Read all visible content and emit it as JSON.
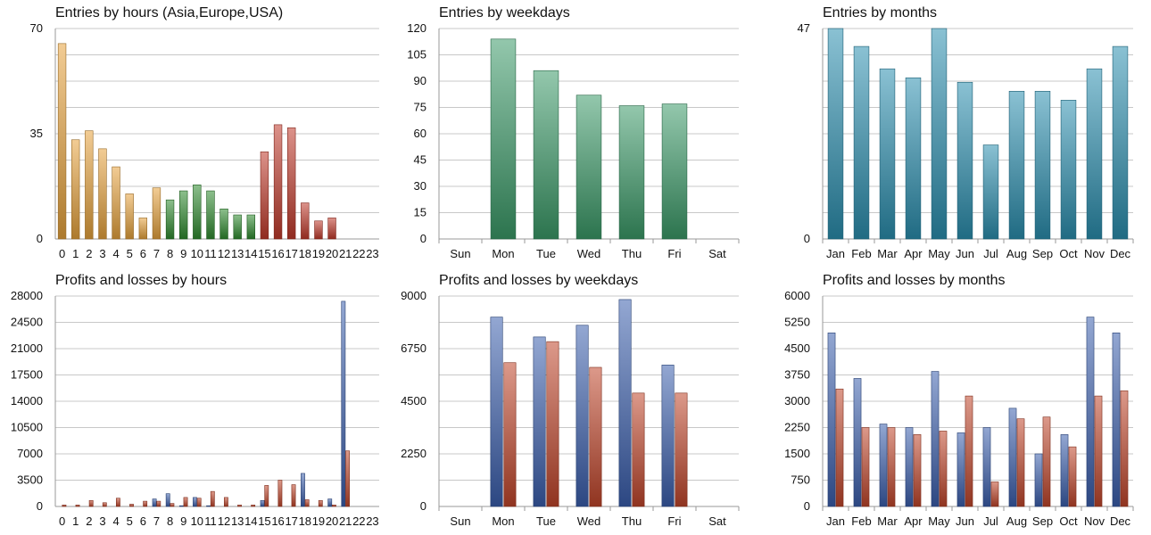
{
  "chart_data": [
    {
      "id": "hours_entries",
      "type": "bar",
      "title": "Entries by hours (Asia,Europe,USA)",
      "categories": [
        "0",
        "1",
        "2",
        "3",
        "4",
        "5",
        "6",
        "7",
        "8",
        "9",
        "10",
        "11",
        "12",
        "13",
        "14",
        "15",
        "16",
        "17",
        "18",
        "19",
        "20",
        "21",
        "22",
        "23"
      ],
      "values": [
        65,
        33,
        36,
        30,
        24,
        15,
        7,
        17,
        13,
        16,
        18,
        16,
        10,
        8,
        8,
        29,
        38,
        37,
        12,
        6,
        7,
        0,
        0,
        0
      ],
      "bar_colors": [
        "#e7a23c",
        "#e7a23c",
        "#e7a23c",
        "#e7a23c",
        "#e7a23c",
        "#e7a23c",
        "#e7a23c",
        "#e7a23c",
        "#2e8b2e",
        "#2e8b2e",
        "#2e8b2e",
        "#2e8b2e",
        "#2e8b2e",
        "#2e8b2e",
        "#2e8b2e",
        "#c0392b",
        "#c0392b",
        "#c0392b",
        "#c0392b",
        "#c0392b",
        "#c0392b",
        "#c0392b",
        "#c0392b",
        "#c0392b"
      ],
      "ylim": [
        0,
        70
      ],
      "ytick_labels": [
        "0",
        "35",
        "70"
      ],
      "gridlines": 8,
      "grid": true,
      "xlabel": "",
      "ylabel": ""
    },
    {
      "id": "weekday_entries",
      "type": "bar",
      "title": "Entries by weekdays",
      "categories": [
        "Sun",
        "Mon",
        "Tue",
        "Wed",
        "Thu",
        "Fri",
        "Sat"
      ],
      "values": [
        0,
        114,
        96,
        82,
        76,
        77,
        0
      ],
      "color": "#3a9a68",
      "ylim": [
        0,
        120
      ],
      "ytick_labels": [
        "0",
        "15",
        "30",
        "45",
        "60",
        "75",
        "90",
        "105",
        "120"
      ],
      "gridlines": 8,
      "grid": true,
      "xlabel": "",
      "ylabel": ""
    },
    {
      "id": "month_entries",
      "type": "bar",
      "title": "Entries by months",
      "categories": [
        "Jan",
        "Feb",
        "Mar",
        "Apr",
        "May",
        "Jun",
        "Jul",
        "Aug",
        "Sep",
        "Oct",
        "Nov",
        "Dec"
      ],
      "values": [
        47,
        43,
        38,
        36,
        47,
        35,
        21,
        33,
        33,
        31,
        38,
        43
      ],
      "color": "#2a8faf",
      "ylim": [
        0,
        47
      ],
      "ytick_labels": [
        "0",
        "47"
      ],
      "gridlines": 8,
      "grid": true,
      "xlabel": "",
      "ylabel": ""
    },
    {
      "id": "hours_pl",
      "type": "bar",
      "title": "Profits and losses by hours",
      "categories": [
        "0",
        "1",
        "2",
        "3",
        "4",
        "5",
        "6",
        "7",
        "8",
        "9",
        "10",
        "11",
        "12",
        "13",
        "14",
        "15",
        "16",
        "17",
        "18",
        "19",
        "20",
        "21",
        "22",
        "23"
      ],
      "series": [
        {
          "values": [
            0,
            0,
            0,
            0,
            0,
            0,
            0,
            1000,
            1700,
            100,
            1200,
            100,
            0,
            0,
            0,
            800,
            0,
            0,
            4400,
            0,
            1000,
            27300,
            0,
            0
          ],
          "color": "#3a5fad"
        },
        {
          "values": [
            200,
            200,
            800,
            500,
            1100,
            300,
            700,
            700,
            400,
            1200,
            1100,
            2000,
            1200,
            200,
            200,
            2800,
            3500,
            2900,
            900,
            800,
            200,
            7400,
            0,
            0
          ],
          "color": "#c0452b"
        }
      ],
      "ylim": [
        0,
        28000
      ],
      "ytick_labels": [
        "0",
        "3500",
        "7000",
        "10500",
        "14000",
        "17500",
        "21000",
        "24500",
        "28000"
      ],
      "gridlines": 8,
      "grid": true,
      "xlabel": "",
      "ylabel": ""
    },
    {
      "id": "weekday_pl",
      "type": "bar",
      "title": "Profits and losses by weekdays",
      "categories": [
        "Sun",
        "Mon",
        "Tue",
        "Wed",
        "Thu",
        "Fri",
        "Sat"
      ],
      "series": [
        {
          "values": [
            0,
            8100,
            7250,
            7750,
            8850,
            6050,
            0
          ],
          "color": "#3a5fad"
        },
        {
          "values": [
            0,
            6150,
            7050,
            5950,
            4850,
            4850,
            0
          ],
          "color": "#c0452b"
        }
      ],
      "ylim": [
        0,
        9000
      ],
      "ytick_labels": [
        "0",
        "2250",
        "4500",
        "6750",
        "9000"
      ],
      "gridlines": 8,
      "grid": true,
      "xlabel": "",
      "ylabel": ""
    },
    {
      "id": "month_pl",
      "type": "bar",
      "title": "Profits and losses by months",
      "categories": [
        "Jan",
        "Feb",
        "Mar",
        "Apr",
        "May",
        "Jun",
        "Jul",
        "Aug",
        "Sep",
        "Oct",
        "Nov",
        "Dec"
      ],
      "series": [
        {
          "values": [
            4950,
            3650,
            2350,
            2250,
            3850,
            2100,
            2250,
            2800,
            1500,
            2050,
            5400,
            4950
          ],
          "color": "#3a5fad"
        },
        {
          "values": [
            3350,
            2250,
            2250,
            2050,
            2150,
            3150,
            700,
            2500,
            2550,
            1700,
            3150,
            3300
          ],
          "color": "#c0452b"
        }
      ],
      "ylim": [
        0,
        6000
      ],
      "ytick_labels": [
        "0",
        "750",
        "1500",
        "2250",
        "3000",
        "3750",
        "4500",
        "5250",
        "6000"
      ],
      "gridlines": 8,
      "grid": true,
      "xlabel": "",
      "ylabel": ""
    }
  ]
}
